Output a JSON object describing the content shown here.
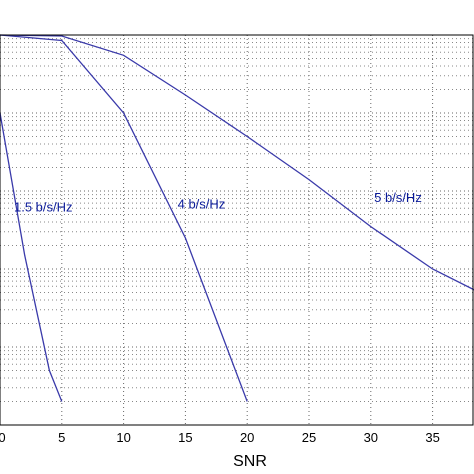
{
  "chart_data": {
    "type": "line",
    "title": "",
    "xlabel": "SNR",
    "ylabel": "",
    "xlim": [
      0,
      40
    ],
    "ylim": [
      1e-05,
      1
    ],
    "yscale": "log",
    "grid": true,
    "xticks": [
      0,
      5,
      10,
      15,
      20,
      25,
      30,
      35
    ],
    "xtick_labels": [
      "0",
      "5",
      "10",
      "15",
      "20",
      "25",
      "30",
      "35"
    ],
    "series_color": "#3a3aaa",
    "annotation_color": "#0a1a99",
    "series": [
      {
        "name": "1.5 b/s/Hz",
        "x": [
          0,
          2,
          4,
          5
        ],
        "y": [
          0.1,
          0.0015,
          5e-05,
          2e-05
        ]
      },
      {
        "name": "4 b/s/Hz",
        "x": [
          0,
          5,
          10,
          15,
          20
        ],
        "y": [
          1,
          0.85,
          0.1,
          0.0025,
          2e-05
        ]
      },
      {
        "name": "5 b/s/Hz",
        "x": [
          0,
          5,
          10,
          15,
          20,
          25,
          30,
          35,
          40
        ],
        "y": [
          1,
          0.97,
          0.55,
          0.17,
          0.05,
          0.014,
          0.0035,
          0.001,
          0.0004
        ]
      }
    ],
    "annotations": [
      {
        "text": "1.5 b/s/Hz",
        "x": 3.5,
        "y": 0.0055
      },
      {
        "text": "4 b/s/Hz",
        "x": 16.3,
        "y": 0.006
      },
      {
        "text": "5 b/s/Hz",
        "x": 32.2,
        "y": 0.0072
      }
    ]
  }
}
